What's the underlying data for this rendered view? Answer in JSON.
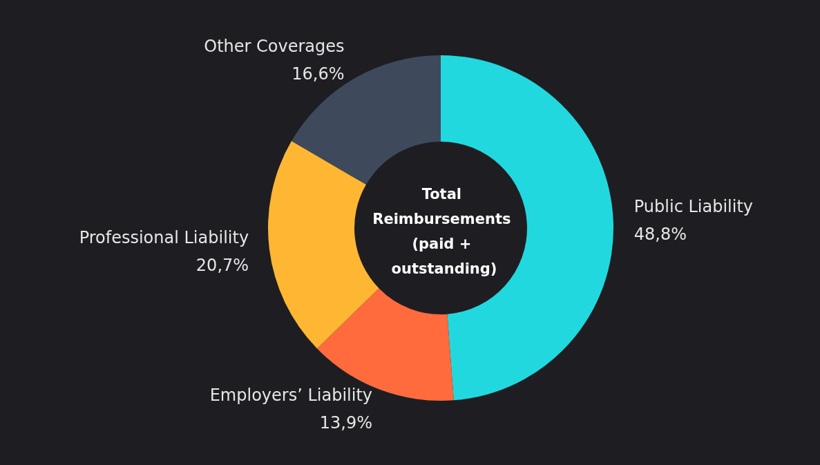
{
  "chart_data": {
    "type": "donut",
    "title": "Total Reimbursements (paid + outstanding)",
    "categories": [
      "Public Liability",
      "Employers’ Liability",
      "Professional Liability",
      "Other Coverages"
    ],
    "values": [
      48.8,
      13.9,
      20.7,
      16.6
    ],
    "value_labels": [
      "48,8%",
      "13,9%",
      "20,7%",
      "16,6%"
    ],
    "colors": [
      "#22d8df",
      "#ff6b3d",
      "#ffb733",
      "#3e4a5c"
    ],
    "legend": false
  }
}
